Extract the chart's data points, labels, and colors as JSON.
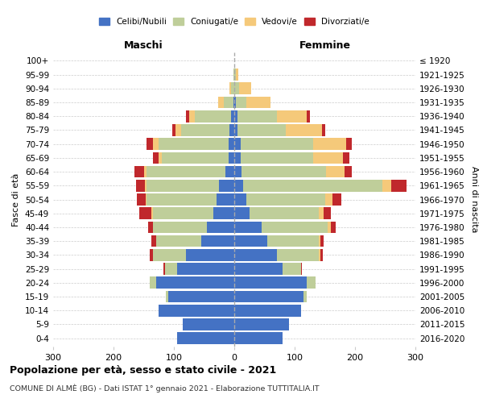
{
  "age_groups": [
    "0-4",
    "5-9",
    "10-14",
    "15-19",
    "20-24",
    "25-29",
    "30-34",
    "35-39",
    "40-44",
    "45-49",
    "50-54",
    "55-59",
    "60-64",
    "65-69",
    "70-74",
    "75-79",
    "80-84",
    "85-89",
    "90-94",
    "95-99",
    "100+"
  ],
  "birth_years": [
    "2016-2020",
    "2011-2015",
    "2006-2010",
    "2001-2005",
    "1996-2000",
    "1991-1995",
    "1986-1990",
    "1981-1985",
    "1976-1980",
    "1971-1975",
    "1966-1970",
    "1961-1965",
    "1956-1960",
    "1951-1955",
    "1946-1950",
    "1941-1945",
    "1936-1940",
    "1931-1935",
    "1926-1930",
    "1921-1925",
    "≤ 1920"
  ],
  "colors": {
    "celibi": "#4472C4",
    "coniugati": "#BFCE9A",
    "vedovi": "#F5C97A",
    "divorziati": "#C0282C"
  },
  "maschi": {
    "celibi": [
      95,
      85,
      125,
      110,
      130,
      95,
      80,
      55,
      45,
      35,
      30,
      25,
      15,
      10,
      10,
      8,
      5,
      2,
      0,
      0,
      0
    ],
    "coniugati": [
      0,
      0,
      0,
      3,
      10,
      20,
      55,
      75,
      90,
      100,
      115,
      120,
      130,
      110,
      115,
      80,
      60,
      15,
      5,
      1,
      0
    ],
    "vedovi": [
      0,
      0,
      0,
      0,
      0,
      0,
      0,
      0,
      0,
      2,
      2,
      3,
      5,
      5,
      10,
      10,
      10,
      10,
      3,
      0,
      0
    ],
    "divorziati": [
      0,
      0,
      0,
      0,
      0,
      2,
      5,
      8,
      8,
      20,
      15,
      15,
      15,
      10,
      10,
      5,
      5,
      0,
      0,
      0,
      0
    ]
  },
  "femmine": {
    "celibi": [
      80,
      90,
      110,
      115,
      120,
      80,
      70,
      55,
      45,
      25,
      20,
      15,
      12,
      10,
      10,
      5,
      5,
      2,
      0,
      0,
      0
    ],
    "coniugati": [
      0,
      0,
      0,
      5,
      15,
      30,
      70,
      85,
      110,
      115,
      130,
      230,
      140,
      120,
      120,
      80,
      65,
      18,
      8,
      2,
      0
    ],
    "vedovi": [
      0,
      0,
      0,
      0,
      0,
      0,
      2,
      3,
      5,
      8,
      12,
      15,
      30,
      50,
      55,
      60,
      50,
      40,
      20,
      5,
      0
    ],
    "divorziati": [
      0,
      0,
      0,
      0,
      0,
      2,
      5,
      5,
      8,
      12,
      15,
      25,
      12,
      10,
      10,
      5,
      5,
      0,
      0,
      0,
      0
    ]
  },
  "xlim": 300,
  "title": "Popolazione per età, sesso e stato civile - 2021",
  "subtitle": "COMUNE DI ALMÈ (BG) - Dati ISTAT 1° gennaio 2021 - Elaborazione TUTTITALIA.IT",
  "xlabel_left": "Maschi",
  "xlabel_right": "Femmine",
  "ylabel": "Fasce di età",
  "ylabel_right": "Anni di nascita",
  "legend_labels": [
    "Celibi/Nubili",
    "Coniugati/e",
    "Vedovi/e",
    "Divorziati/e"
  ],
  "background_color": "#FFFFFF",
  "grid_color": "#CCCCCC"
}
